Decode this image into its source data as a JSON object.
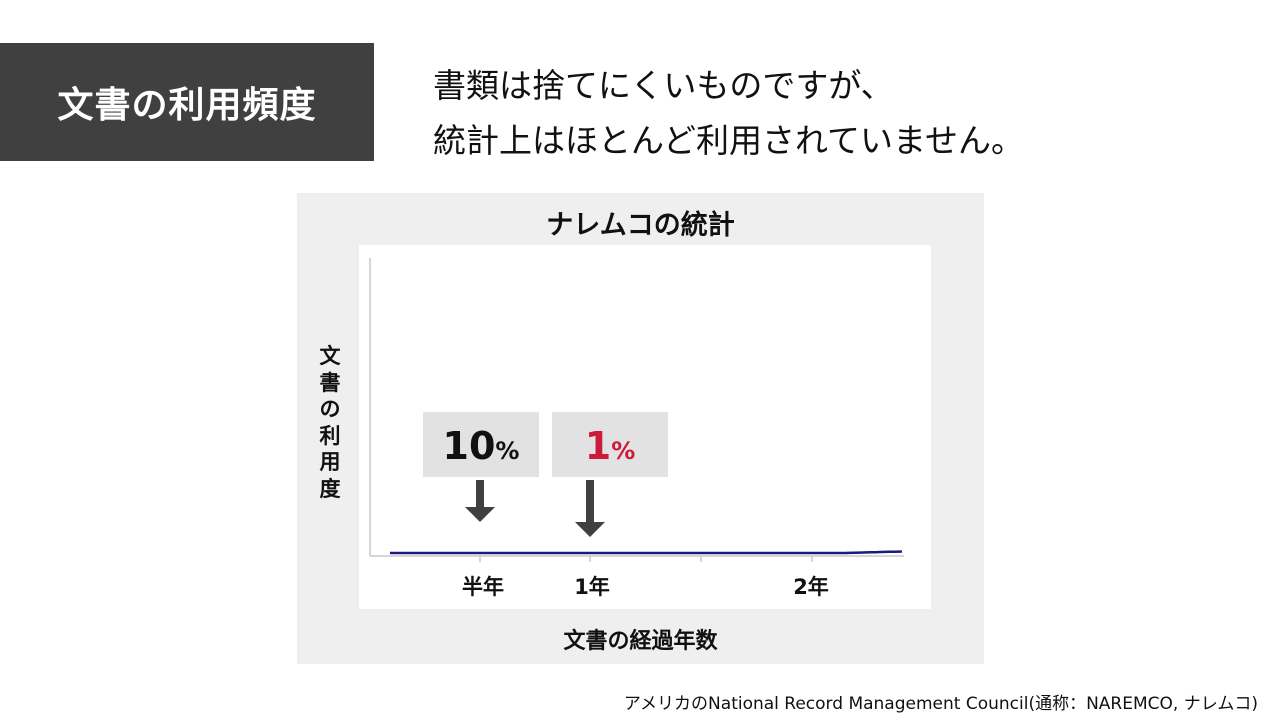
{
  "header": {
    "title": "文書の利用頻度",
    "subtitle_line1": "書類は捨てにくいものですが、",
    "subtitle_line2": "統計上はほとんど利用されていません。"
  },
  "source_note": "アメリカのNational Record Management Council(通称：NAREMCO, ナレムコ)",
  "chart_data": {
    "type": "line",
    "title": "ナレムコの統計",
    "ylabel": "文書の利用度",
    "xlabel": "文書の経過年数",
    "x_ticks": [
      "半年",
      "1年",
      "2年"
    ],
    "curve_color": "#1a1a80",
    "annotations": [
      {
        "number": "10",
        "unit": "%",
        "color": "#111111"
      },
      {
        "number": "1",
        "unit": "%",
        "color": "#cc1a3a"
      }
    ]
  }
}
